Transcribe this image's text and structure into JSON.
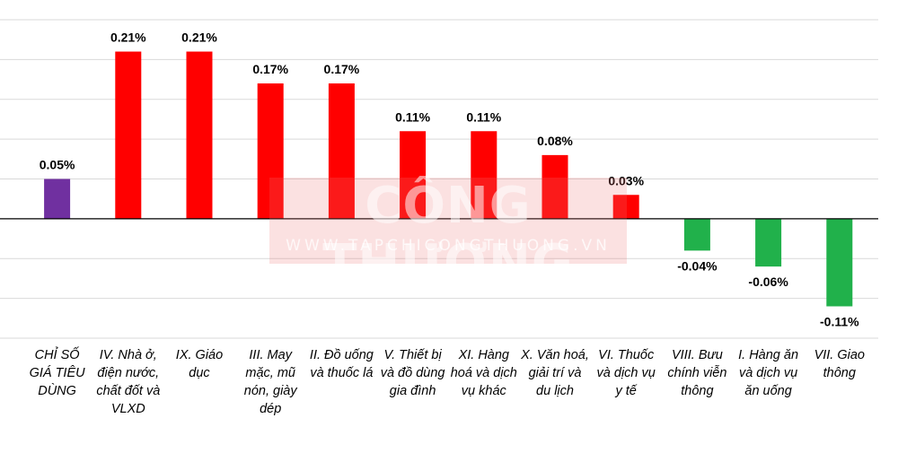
{
  "watermark": {
    "title": "CÔNG THƯƠNG",
    "url": "WWW.TAPCHICONGTHUONG.VN"
  },
  "chart_data": {
    "type": "bar",
    "title": "",
    "xlabel": "",
    "ylabel": "",
    "ylim": [
      -0.15,
      0.25
    ],
    "grid": true,
    "categories": [
      "CHỈ SỐ GIÁ TIÊU DÙNG",
      "IV. Nhà ở, điện nước, chất đốt và VLXD",
      "IX. Giáo dục",
      "III. May mặc, mũ nón, giày dép",
      "II. Đồ uống và thuốc lá",
      "V. Thiết bị và đồ dùng gia đình",
      "XI. Hàng hoá và dịch vụ khác",
      "X. Văn hoá, giải trí và du lịch",
      "VI. Thuốc và dịch vụ y tế",
      "VIII. Bưu chính viễn thông",
      "I. Hàng ăn và dịch vụ ăn uống",
      "VII. Giao thông"
    ],
    "values": [
      0.05,
      0.21,
      0.21,
      0.17,
      0.17,
      0.11,
      0.11,
      0.08,
      0.03,
      -0.04,
      -0.06,
      -0.11
    ],
    "data_labels": [
      "0.05%",
      "0.21%",
      "0.21%",
      "0.17%",
      "0.17%",
      "0.11%",
      "0.11%",
      "0.08%",
      "0.03%",
      "-0.04%",
      "-0.06%",
      "-0.11%"
    ],
    "colors": [
      "#7030a0",
      "#ff0000",
      "#ff0000",
      "#ff0000",
      "#ff0000",
      "#ff0000",
      "#ff0000",
      "#ff0000",
      "#ff0000",
      "#21b14b",
      "#21b14b",
      "#21b14b"
    ]
  }
}
